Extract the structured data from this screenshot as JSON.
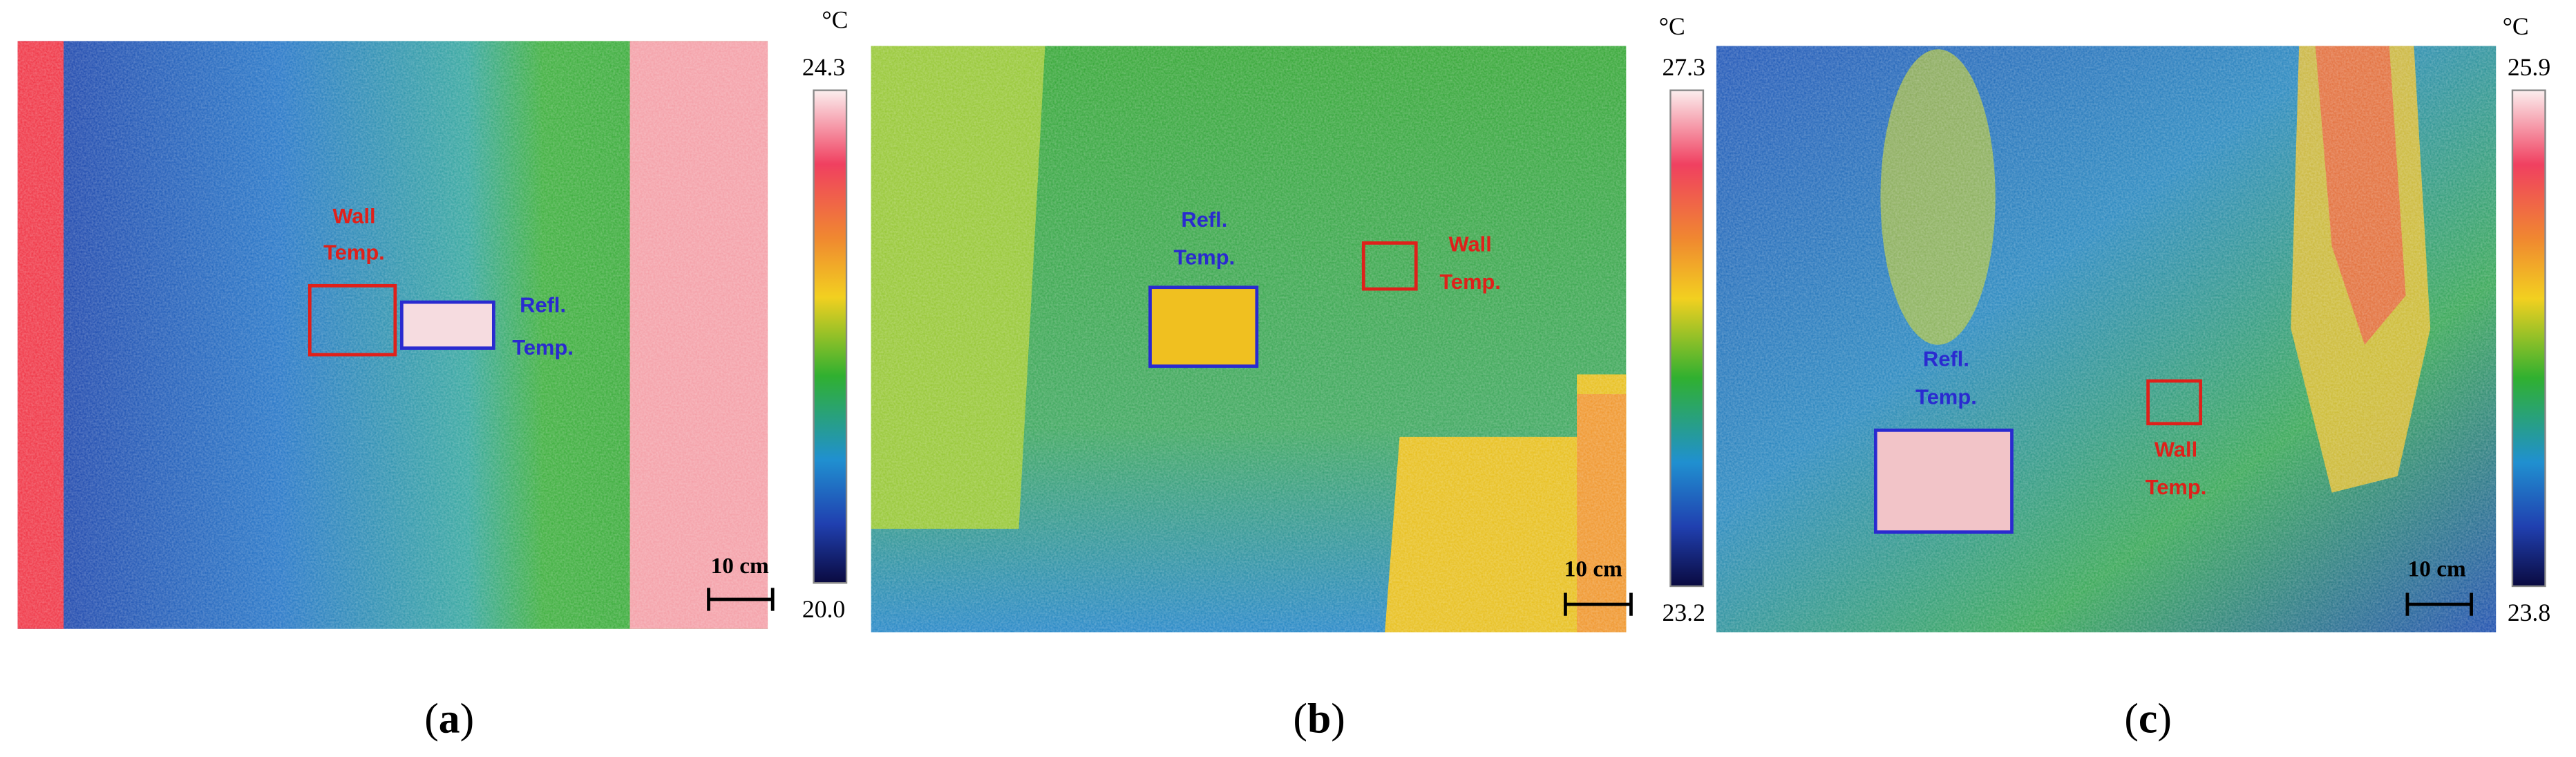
{
  "figure": {
    "panels": [
      {
        "unit": "°C",
        "scale_max": "24.3",
        "scale_min": "20.0",
        "wall_label": [
          "Wall",
          "Temp."
        ],
        "refl_label": [
          "Refl.",
          "Temp."
        ],
        "scale_bar": "10 cm",
        "caption": {
          "open": "(",
          "letter": "a",
          "close": ")"
        }
      },
      {
        "unit": "°C",
        "scale_max": "27.3",
        "scale_min": "23.2",
        "wall_label": [
          "Wall",
          "Temp."
        ],
        "refl_label": [
          "Refl.",
          "Temp."
        ],
        "scale_bar": "10 cm",
        "caption": {
          "open": "(",
          "letter": "b",
          "close": ")"
        }
      },
      {
        "unit": "°C",
        "scale_max": "25.9",
        "scale_min": "23.8",
        "wall_label": [
          "Wall",
          "Temp."
        ],
        "refl_label": [
          "Refl.",
          "Temp."
        ],
        "scale_bar": "10 cm",
        "caption": {
          "open": "(",
          "letter": "c",
          "close": ")"
        }
      }
    ]
  }
}
